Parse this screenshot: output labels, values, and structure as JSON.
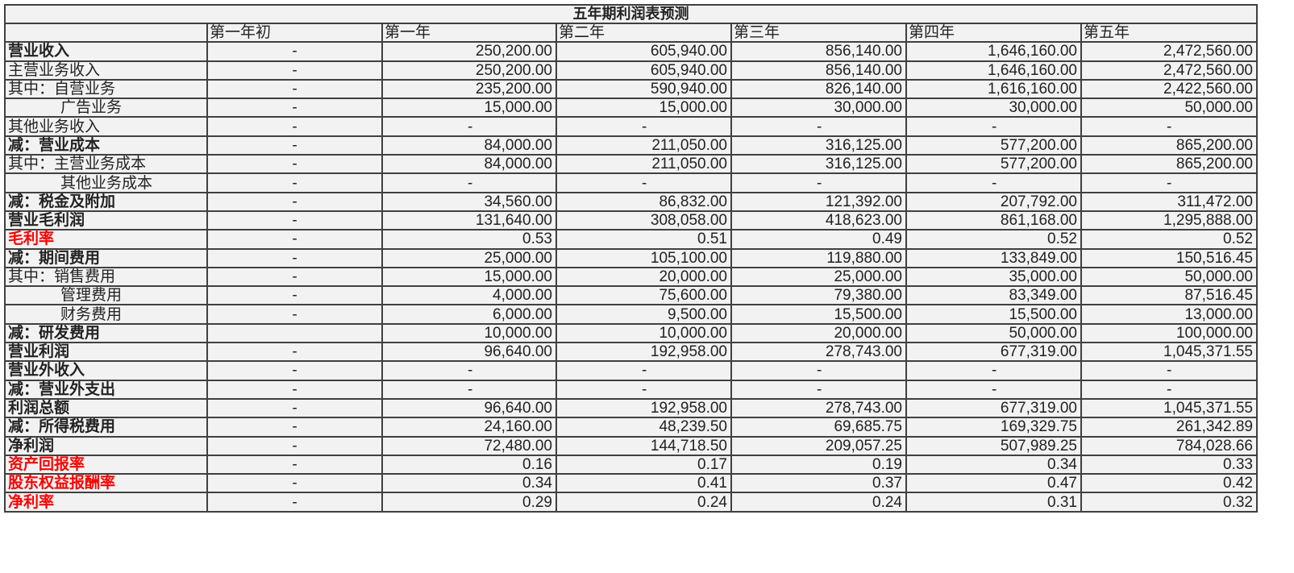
{
  "title": "五年期利润表预测",
  "headers": [
    "",
    "第一年初",
    "第一年",
    "第二年",
    "第三年",
    "第四年",
    "第五年"
  ],
  "rows": [
    {
      "label": "营业收入",
      "style": "bold",
      "values": [
        "-",
        "250,200.00",
        "605,940.00",
        "856,140.00",
        "1,646,160.00",
        "2,472,560.00"
      ]
    },
    {
      "label": "主营业务收入",
      "style": "",
      "values": [
        "-",
        "250,200.00",
        "605,940.00",
        "856,140.00",
        "1,646,160.00",
        "2,472,560.00"
      ]
    },
    {
      "label": "其中：自营业务",
      "style": "",
      "values": [
        "-",
        "235,200.00",
        "590,940.00",
        "826,140.00",
        "1,616,160.00",
        "2,422,560.00"
      ]
    },
    {
      "label": "广告业务",
      "style": "indent",
      "values": [
        "-",
        "15,000.00",
        "15,000.00",
        "30,000.00",
        "30,000.00",
        "50,000.00"
      ]
    },
    {
      "label": "其他业务收入",
      "style": "",
      "values": [
        "-",
        "-",
        "-",
        "-",
        "-",
        "-"
      ]
    },
    {
      "label": "减：营业成本",
      "style": "bold",
      "values": [
        "-",
        "84,000.00",
        "211,050.00",
        "316,125.00",
        "577,200.00",
        "865,200.00"
      ]
    },
    {
      "label": "其中：主营业务成本",
      "style": "",
      "values": [
        "-",
        "84,000.00",
        "211,050.00",
        "316,125.00",
        "577,200.00",
        "865,200.00"
      ]
    },
    {
      "label": "其他业务成本",
      "style": "indent",
      "values": [
        "-",
        "-",
        "-",
        "-",
        "-",
        "-"
      ]
    },
    {
      "label": "减：税金及附加",
      "style": "bold",
      "values": [
        "-",
        "34,560.00",
        "86,832.00",
        "121,392.00",
        "207,792.00",
        "311,472.00"
      ]
    },
    {
      "label": "营业毛利润",
      "style": "bold",
      "values": [
        "-",
        "131,640.00",
        "308,058.00",
        "418,623.00",
        "861,168.00",
        "1,295,888.00"
      ]
    },
    {
      "label": "毛利率",
      "style": "red",
      "values": [
        "-",
        "0.53",
        "0.51",
        "0.49",
        "0.52",
        "0.52"
      ]
    },
    {
      "label": "减：期间费用",
      "style": "bold",
      "values": [
        "-",
        "25,000.00",
        "105,100.00",
        "119,880.00",
        "133,849.00",
        "150,516.45"
      ]
    },
    {
      "label": "其中：销售费用",
      "style": "",
      "values": [
        "-",
        "15,000.00",
        "20,000.00",
        "25,000.00",
        "35,000.00",
        "50,000.00"
      ]
    },
    {
      "label": "管理费用",
      "style": "indent",
      "values": [
        "-",
        "4,000.00",
        "75,600.00",
        "79,380.00",
        "83,349.00",
        "87,516.45"
      ]
    },
    {
      "label": "财务费用",
      "style": "indent",
      "values": [
        "-",
        "6,000.00",
        "9,500.00",
        "15,500.00",
        "15,500.00",
        "13,000.00"
      ]
    },
    {
      "label": "减：研发费用",
      "style": "bold",
      "values": [
        "",
        "10,000.00",
        "10,000.00",
        "20,000.00",
        "50,000.00",
        "100,000.00"
      ]
    },
    {
      "label": "营业利润",
      "style": "bold",
      "values": [
        "-",
        "96,640.00",
        "192,958.00",
        "278,743.00",
        "677,319.00",
        "1,045,371.55"
      ]
    },
    {
      "label": "营业外收入",
      "style": "bold",
      "values": [
        "-",
        "-",
        "-",
        "-",
        "-",
        "-"
      ]
    },
    {
      "label": "减：营业外支出",
      "style": "bold",
      "values": [
        "-",
        "-",
        "-",
        "-",
        "-",
        "-"
      ]
    },
    {
      "label": "利润总额",
      "style": "bold",
      "values": [
        "-",
        "96,640.00",
        "192,958.00",
        "278,743.00",
        "677,319.00",
        "1,045,371.55"
      ]
    },
    {
      "label": "减：所得税费用",
      "style": "bold",
      "values": [
        "-",
        "24,160.00",
        "48,239.50",
        "69,685.75",
        "169,329.75",
        "261,342.89"
      ]
    },
    {
      "label": "净利润",
      "style": "bold",
      "values": [
        "-",
        "72,480.00",
        "144,718.50",
        "209,057.25",
        "507,989.25",
        "784,028.66"
      ]
    },
    {
      "label": "资产回报率",
      "style": "red",
      "values": [
        "-",
        "0.16",
        "0.17",
        "0.19",
        "0.34",
        "0.33"
      ]
    },
    {
      "label": "股东权益报酬率",
      "style": "red",
      "values": [
        "-",
        "0.34",
        "0.41",
        "0.37",
        "0.47",
        "0.42"
      ]
    },
    {
      "label": "净利率",
      "style": "red",
      "values": [
        "-",
        "0.29",
        "0.24",
        "0.24",
        "0.31",
        "0.32"
      ]
    }
  ],
  "colors": {
    "background": "#f2f2f2",
    "border": "#404040",
    "highlight": "#ff0000"
  }
}
